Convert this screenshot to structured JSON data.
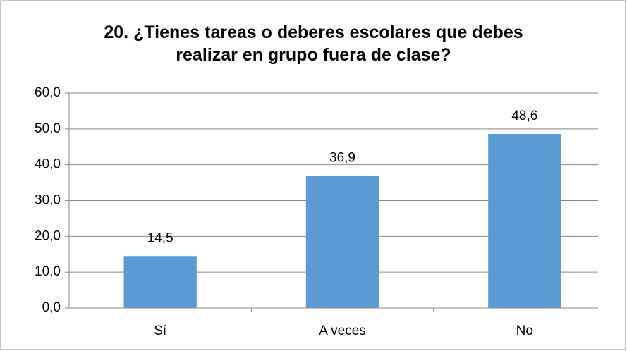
{
  "chart_data": {
    "type": "bar",
    "title": "20. ¿Tienes tareas o deberes escolares que debes realizar en grupo fuera de clase?",
    "categories": [
      "Sí",
      "A veces",
      "No"
    ],
    "values": [
      14.5,
      36.9,
      48.6
    ],
    "value_labels": [
      "14,5",
      "36,9",
      "48,6"
    ],
    "color": "#5b9bd5",
    "ylim": [
      0,
      60
    ],
    "yticks": [
      {
        "value": 0,
        "label": "0,0"
      },
      {
        "value": 10,
        "label": "10,0"
      },
      {
        "value": 20,
        "label": "20,0"
      },
      {
        "value": 30,
        "label": "30,0"
      },
      {
        "value": 40,
        "label": "40,0"
      },
      {
        "value": 50,
        "label": "50,0"
      },
      {
        "value": 60,
        "label": "60,0"
      }
    ],
    "grid": true
  }
}
